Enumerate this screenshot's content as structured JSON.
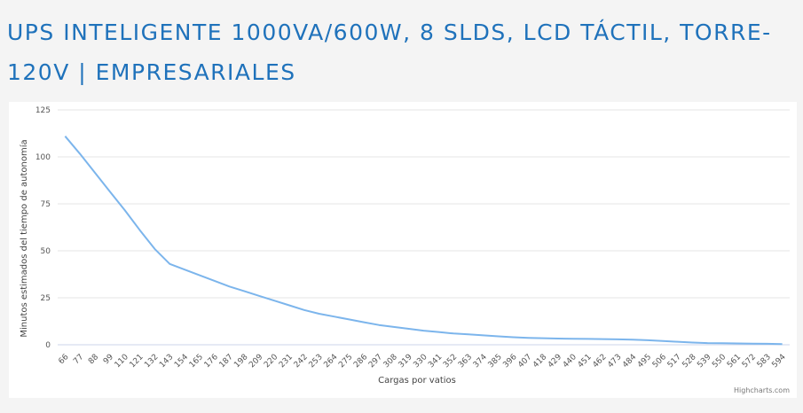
{
  "page": {
    "title": "UPS INTELIGENTE 1000VA/600W, 8 SLDS, LCD TÁCTIL, TORRE-120V | EMPRESARIALES"
  },
  "colors": {
    "title": "#1f72bb",
    "series": "#7cb5ec",
    "grid": "#e6e6e6",
    "background": "#f4f4f4"
  },
  "chart_data": {
    "type": "line",
    "xlabel": "Cargas por vatios",
    "ylabel": "Minutos estimados del tiempo de autonomía",
    "ylim": [
      0,
      125
    ],
    "yticks": [
      0,
      25,
      50,
      75,
      100,
      125
    ],
    "grid": true,
    "legend": "none",
    "credits": "Highcharts.com",
    "categories": [
      "66",
      "77",
      "88",
      "99",
      "110",
      "121",
      "132",
      "143",
      "154",
      "165",
      "176",
      "187",
      "198",
      "209",
      "220",
      "231",
      "242",
      "253",
      "264",
      "275",
      "286",
      "297",
      "308",
      "319",
      "330",
      "341",
      "352",
      "363",
      "374",
      "385",
      "396",
      "407",
      "418",
      "429",
      "440",
      "451",
      "462",
      "473",
      "484",
      "495",
      "506",
      "517",
      "528",
      "539",
      "550",
      "561",
      "572",
      "583",
      "594"
    ],
    "series": [
      {
        "values": [
          111,
          101.5,
          91.5,
          81.5,
          71.5,
          61,
          51,
          43,
          40,
          37,
          34,
          31,
          28.5,
          26,
          23.5,
          21,
          18.5,
          16.5,
          15,
          13.5,
          12,
          10.5,
          9.5,
          8.5,
          7.5,
          6.8,
          6,
          5.5,
          5,
          4.5,
          4,
          3.7,
          3.5,
          3.3,
          3.2,
          3.1,
          3,
          2.9,
          2.7,
          2.4,
          2,
          1.6,
          1.2,
          0.9,
          0.8,
          0.7,
          0.6,
          0.5,
          0.4
        ]
      }
    ]
  }
}
